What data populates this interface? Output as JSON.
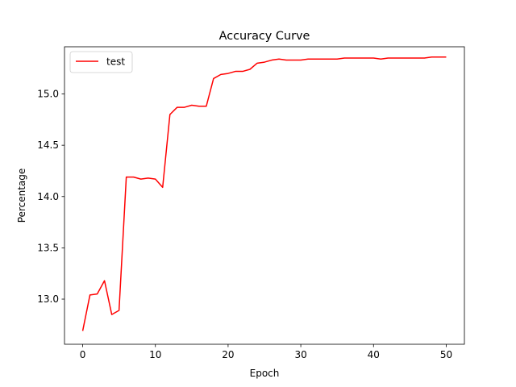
{
  "chart_data": {
    "type": "line",
    "title": "Accuracy Curve",
    "xlabel": "Epoch",
    "ylabel": "Percentage",
    "xlim": [
      -2.5,
      52.5
    ],
    "ylim": [
      12.56,
      15.46
    ],
    "xticks": [
      0,
      10,
      20,
      30,
      40,
      50
    ],
    "xtick_labels": [
      "0",
      "10",
      "20",
      "30",
      "40",
      "50"
    ],
    "yticks": [
      13.0,
      13.5,
      14.0,
      14.5,
      15.0
    ],
    "ytick_labels": [
      "13.0",
      "13.5",
      "14.0",
      "14.5",
      "15.0"
    ],
    "grid": false,
    "legend_position": "top-left",
    "series": [
      {
        "name": "test",
        "color": "#ff0000",
        "x": [
          0,
          1,
          2,
          3,
          4,
          5,
          6,
          7,
          8,
          9,
          10,
          11,
          12,
          13,
          14,
          15,
          16,
          17,
          18,
          19,
          20,
          21,
          22,
          23,
          24,
          25,
          26,
          27,
          28,
          29,
          30,
          31,
          32,
          33,
          34,
          35,
          36,
          37,
          38,
          39,
          40,
          41,
          42,
          43,
          44,
          45,
          46,
          47,
          48,
          49,
          50
        ],
        "y": [
          12.69,
          13.04,
          13.05,
          13.18,
          12.85,
          12.89,
          14.19,
          14.19,
          14.17,
          14.18,
          14.17,
          14.09,
          14.8,
          14.87,
          14.87,
          14.89,
          14.88,
          14.88,
          15.15,
          15.19,
          15.2,
          15.22,
          15.22,
          15.24,
          15.3,
          15.31,
          15.33,
          15.34,
          15.33,
          15.33,
          15.33,
          15.34,
          15.34,
          15.34,
          15.34,
          15.34,
          15.35,
          15.35,
          15.35,
          15.35,
          15.35,
          15.34,
          15.35,
          15.35,
          15.35,
          15.35,
          15.35,
          15.35,
          15.36,
          15.36,
          15.36
        ]
      }
    ]
  }
}
